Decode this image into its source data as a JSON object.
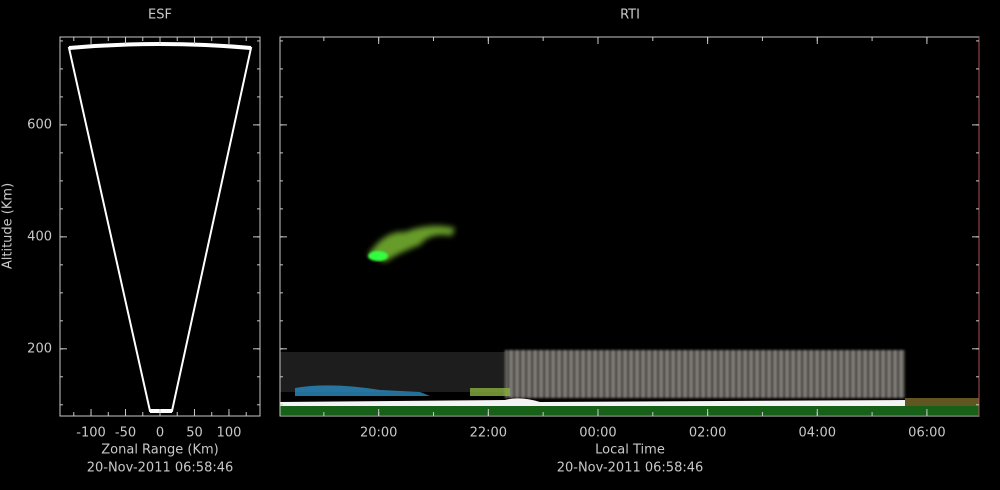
{
  "chart_data": [
    {
      "type": "radar-fan",
      "title": "ESF",
      "x_label": "Zonal Range (Km)",
      "y_label": "Altitude (Km)",
      "timestamp": "20-Nov-2011 06:58:46",
      "xlim": [
        -145,
        145
      ],
      "xticks": [
        -100,
        -50,
        0,
        50,
        100
      ],
      "ylim": [
        80,
        757
      ],
      "yticks": [
        200,
        400,
        600
      ]
    },
    {
      "type": "rti",
      "title": "RTI",
      "x_label": "Local Time",
      "timestamp": "20-Nov-2011 06:58:46",
      "xlim": [
        18.2,
        30.95
      ],
      "xticks": [
        {
          "value": 20,
          "label": "20:00"
        },
        {
          "value": 22,
          "label": "22:00"
        },
        {
          "value": 24,
          "label": "00:00"
        },
        {
          "value": 26,
          "label": "02:00"
        },
        {
          "value": 28,
          "label": "04:00"
        },
        {
          "value": 30,
          "label": "06:00"
        }
      ],
      "ylim": [
        80,
        757
      ],
      "yticks": [
        200,
        400,
        600
      ]
    }
  ]
}
